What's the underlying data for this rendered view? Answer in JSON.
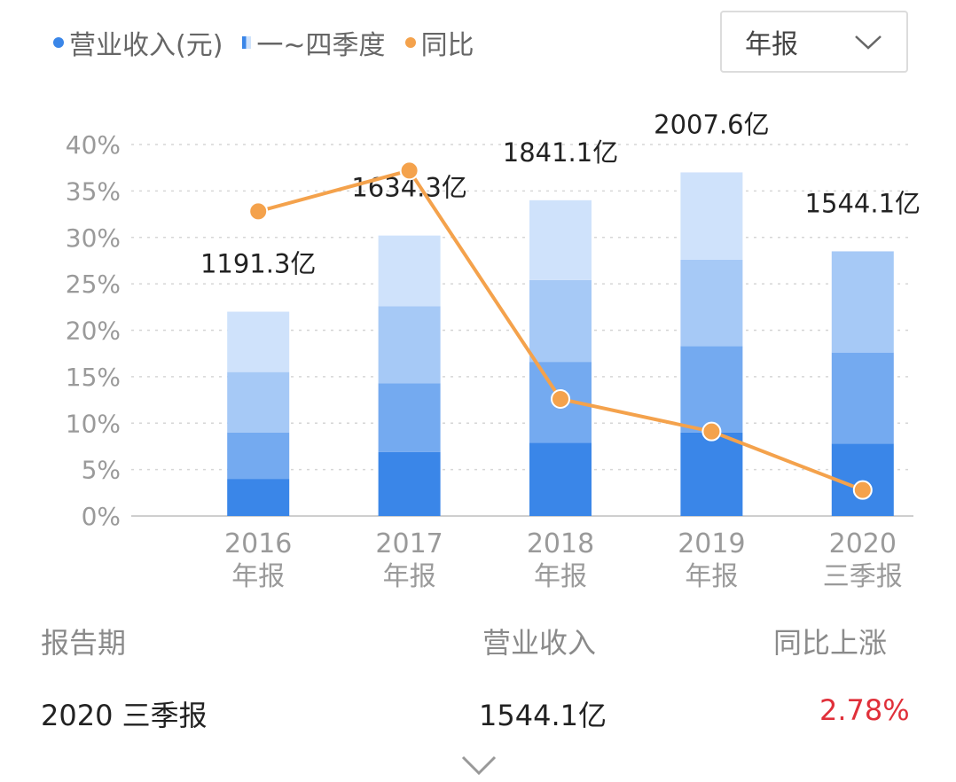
{
  "legend": [
    {
      "label": "营业收入(元)",
      "color": "#3a86e8",
      "marker": "dot"
    },
    {
      "label": "一~四季度",
      "color": "#3a86e8",
      "marker": "gradient"
    },
    {
      "label": "同比",
      "color": "#f4a24c",
      "marker": "dot"
    }
  ],
  "period_select": {
    "value": "年报"
  },
  "chart_data": {
    "type": "bar",
    "categories": [
      {
        "year": "2016",
        "period": "年报"
      },
      {
        "year": "2017",
        "period": "年报"
      },
      {
        "year": "2018",
        "period": "年报"
      },
      {
        "year": "2019",
        "period": "年报"
      },
      {
        "year": "2020",
        "period": "三季报"
      }
    ],
    "y_ticks": [
      "0%",
      "5%",
      "10%",
      "15%",
      "20%",
      "25%",
      "30%",
      "35%",
      "40%"
    ],
    "ylim": [
      0,
      40
    ],
    "grid": true,
    "quarter_stacks_scaled": [
      [
        4.0,
        5.0,
        6.5,
        6.5
      ],
      [
        6.9,
        7.4,
        8.3,
        7.6
      ],
      [
        7.9,
        8.7,
        8.8,
        8.6
      ],
      [
        9.0,
        9.3,
        9.3,
        9.4
      ],
      [
        7.8,
        9.8,
        10.9
      ]
    ],
    "bar_labels": [
      "1191.3亿",
      "1634.3亿",
      "1841.1亿",
      "2007.6亿",
      "1544.1亿"
    ],
    "yoy_values": [
      32.8,
      37.2,
      12.6,
      9.1,
      2.8
    ],
    "colors": {
      "quarters": [
        "#3a86e8",
        "#74aaf0",
        "#a6c9f6",
        "#cfe2fb"
      ],
      "yoy_line": "#f4a24c"
    }
  },
  "table": {
    "headers": {
      "period": "报告期",
      "revenue": "营业收入",
      "change": "同比上涨"
    },
    "row": {
      "period": "2020 三季报",
      "revenue": "1544.1亿",
      "change": "2.78%"
    },
    "change_color": "#e0303a"
  },
  "icons": {
    "select_arrow": "chevron-down-icon",
    "expand": "chevron-down-icon"
  }
}
